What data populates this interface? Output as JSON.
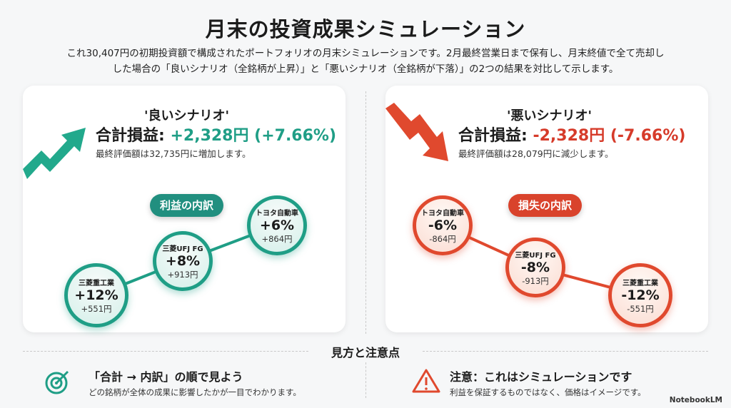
{
  "title": "月末の投資成果シミュレーション",
  "description": [
    "これ30,407円の初期投資額で構成されたポートフォリオの月末シミュレーションです。2月最終営業日まで保有し、月末終値で全て売却し",
    "した場合の「良いシナリオ（全銘柄が上昇）」と「悪いシナリオ（全銘柄が下落）」の2つの結果を対比して示します。"
  ],
  "good": {
    "title": "'良いシナリオ'",
    "total_label": "合計損益: ",
    "total_value": "+2,328円 (+7.66%)",
    "sub": "最終評価額は32,735円に増加します。",
    "pill": "利益の内訳",
    "stocks": [
      {
        "name": "三菱重工業",
        "pct": "+12%",
        "yen": "+551円"
      },
      {
        "name": "三菱UFJ FG",
        "pct": "+8%",
        "yen": "+913円"
      },
      {
        "name": "トヨタ自動車",
        "pct": "+6%",
        "yen": "+864円"
      }
    ]
  },
  "bad": {
    "title": "'悪いシナリオ'",
    "total_label": "合計損益: ",
    "total_value": "-2,328円 (-7.66%)",
    "sub": "最終評価額は28,079円に減少します。",
    "pill": "損失の内訳",
    "stocks": [
      {
        "name": "トヨタ自動車",
        "pct": "-6%",
        "yen": "-864円"
      },
      {
        "name": "三菱UFJ FG",
        "pct": "-8%",
        "yen": "-913円"
      },
      {
        "name": "三菱重工業",
        "pct": "-12%",
        "yen": "-551円"
      }
    ]
  },
  "tips": {
    "title": "見方と注意点",
    "left": {
      "heading": "「合計 → 内訳」の順で見よう",
      "sub": "どの銘柄が全体の成果に影響したかが一目でわかります。"
    },
    "right": {
      "heading": "注意：これはシミュレーションです",
      "sub": "利益を保証するものではなく、価格はイメージです。"
    }
  },
  "brand": "NotebookLM",
  "colors": {
    "good": "#1f9e86",
    "bad": "#e0492e"
  }
}
